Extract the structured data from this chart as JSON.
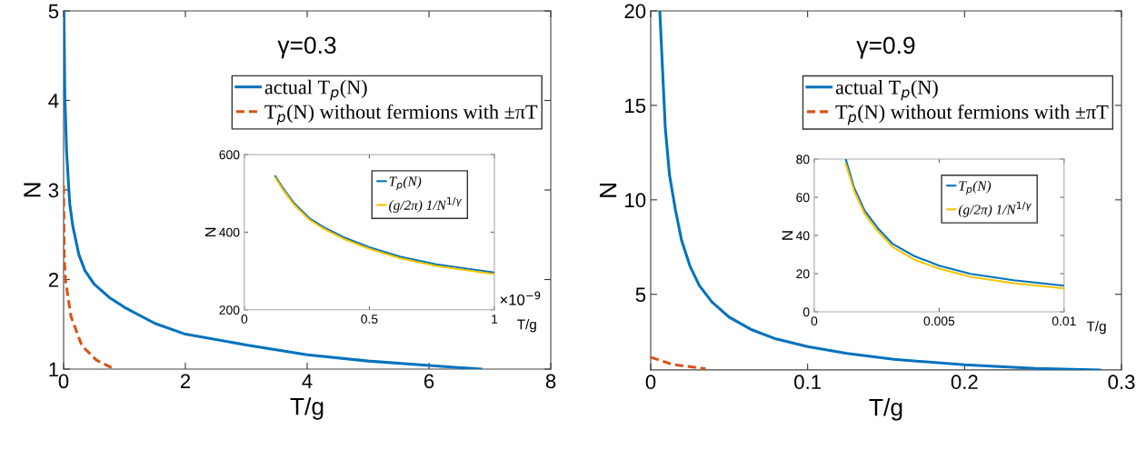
{
  "chart_data": [
    {
      "type": "line",
      "title": "γ=0.3",
      "xlabel": "T/g",
      "ylabel": "N",
      "xlim": [
        0,
        8
      ],
      "ylim": [
        1,
        5
      ],
      "xticks": [
        0,
        2,
        4,
        6,
        8
      ],
      "yticks": [
        1,
        2,
        3,
        4,
        5
      ],
      "legend": "top right",
      "grid": false,
      "series": [
        {
          "name": "actual T$_{p}$(N)",
          "color": "#0072bd",
          "line_style": "solid",
          "x": [
            0.005,
            0.02,
            0.05,
            0.1,
            0.15,
            0.25,
            0.35,
            0.5,
            0.75,
            1,
            1.5,
            2,
            3,
            4,
            5,
            6,
            6.85
          ],
          "values": [
            5,
            4.05,
            3.42,
            2.85,
            2.6,
            2.28,
            2.1,
            1.95,
            1.8,
            1.69,
            1.51,
            1.39,
            1.27,
            1.16,
            1.09,
            1.04,
            1.0
          ]
        },
        {
          "name": "T̃$_{p}$(N) without fermions with ±πT",
          "color": "#d95319",
          "line_style": "dashed",
          "x": [
            0,
            0.01,
            0.03,
            0.12,
            0.3,
            0.54,
            0.84
          ],
          "values": [
            3.05,
            2.28,
            2.0,
            1.59,
            1.26,
            1.1,
            1.0
          ]
        }
      ]
    },
    {
      "type": "line",
      "xlabel": "T/g",
      "ylabel": "N",
      "xlim": [
        0,
        1
      ],
      "ylim": [
        200,
        600
      ],
      "xticks": [
        0,
        0.5,
        1
      ],
      "yticks": [
        200,
        400,
        600
      ],
      "legend": "top right",
      "grid": false,
      "annotations": [
        "×10$^{−9}$"
      ],
      "series": [
        {
          "name": "T$_{p}$(N)",
          "color": "#0072bd",
          "line_style": "solid",
          "x": [
            0.124,
            0.157,
            0.2,
            0.26,
            0.317,
            0.397,
            0.5,
            0.622,
            0.767,
            1
          ],
          "values": [
            544,
            511,
            474,
            436,
            413,
            387,
            361,
            337,
            317,
            296
          ]
        },
        {
          "name": "(g/2π) 1/N$^{1/γ}$",
          "color": "#f5c400",
          "line_style": "solid",
          "x": [
            0.124,
            0.157,
            0.2,
            0.26,
            0.317,
            0.397,
            0.5,
            0.622,
            0.767,
            1
          ],
          "values": [
            540,
            507,
            470,
            432,
            409,
            383,
            357,
            333,
            313,
            292
          ]
        }
      ]
    },
    {
      "type": "line",
      "title": "γ=0.9",
      "xlabel": "T/g",
      "ylabel": "N",
      "xlim": [
        0,
        0.3
      ],
      "ylim": [
        1,
        20
      ],
      "xticks": [
        0,
        0.1,
        0.2,
        0.3
      ],
      "yticks": [
        5,
        10,
        15,
        20
      ],
      "legend": "top right",
      "grid": false,
      "series": [
        {
          "name": "actual T$_{p}$(N)",
          "color": "#0072bd",
          "line_style": "solid",
          "x": [
            0.0058,
            0.0093,
            0.012,
            0.0157,
            0.0197,
            0.025,
            0.031,
            0.039,
            0.0498,
            0.0637,
            0.0787,
            0.1,
            0.125,
            0.155,
            0.2,
            0.245,
            0.286
          ],
          "values": [
            20,
            13.8,
            11.3,
            9.5,
            7.85,
            6.5,
            5.46,
            4.6,
            3.8,
            3.15,
            2.67,
            2.23,
            1.87,
            1.56,
            1.27,
            1.08,
            1.0
          ]
        },
        {
          "name": "T̃$_{p}$(N) without fermions with ±πT",
          "color": "#d95319",
          "line_style": "dashed",
          "x": [
            0,
            0.0139,
            0.035
          ],
          "values": [
            1.67,
            1.29,
            1.06
          ]
        }
      ]
    },
    {
      "type": "line",
      "xlabel": "T/g",
      "ylabel": "N",
      "xlim": [
        0,
        0.01
      ],
      "ylim": [
        0,
        80
      ],
      "xticks": [
        0,
        0.005,
        0.01
      ],
      "yticks": [
        0,
        20,
        40,
        60,
        80
      ],
      "legend": "top right",
      "grid": false,
      "series": [
        {
          "name": "T$_{p}$(N)",
          "color": "#0072bd",
          "line_style": "solid",
          "x": [
            0.00126,
            0.0016,
            0.00202,
            0.00255,
            0.00313,
            0.00399,
            0.005,
            0.00626,
            0.00798,
            0.01
          ],
          "values": [
            80,
            64.9,
            52.9,
            43.7,
            35.7,
            29.3,
            24.2,
            19.9,
            16.6,
            13.7
          ]
        },
        {
          "name": "(g/2π) 1/N$^{1/γ}$",
          "color": "#f5c400",
          "line_style": "solid",
          "x": [
            0.00126,
            0.0016,
            0.00202,
            0.00255,
            0.00313,
            0.00399,
            0.005,
            0.00626,
            0.00798,
            0.01
          ],
          "values": [
            77.6,
            63.3,
            51.3,
            42.1,
            34.1,
            27.4,
            22.6,
            18.3,
            15.0,
            12.3
          ]
        }
      ]
    }
  ]
}
